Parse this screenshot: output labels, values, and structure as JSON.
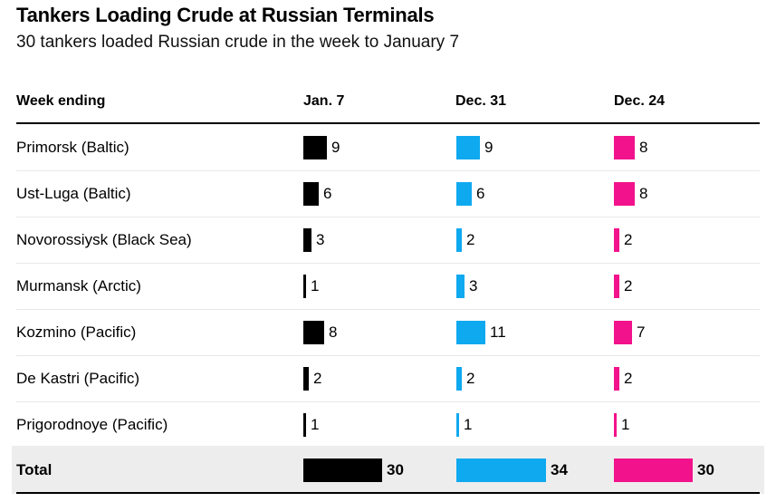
{
  "header": {
    "title": "Tankers Loading Crude at Russian Terminals",
    "subtitle": "30 tankers loaded Russian crude in the week to January 7"
  },
  "table": {
    "row_header_label": "Week ending",
    "columns": [
      {
        "label": "Jan. 7",
        "color": "#000000"
      },
      {
        "label": "Dec. 31",
        "color": "#0fa9f0"
      },
      {
        "label": "Dec. 24",
        "color": "#f2128c"
      }
    ],
    "rows": [
      {
        "terminal": "Primorsk (Baltic)",
        "values": [
          9,
          9,
          8
        ]
      },
      {
        "terminal": "Ust-Luga (Baltic)",
        "values": [
          6,
          6,
          8
        ]
      },
      {
        "terminal": "Novorossiysk (Black Sea)",
        "values": [
          3,
          2,
          2
        ]
      },
      {
        "terminal": "Murmansk (Arctic)",
        "values": [
          1,
          3,
          2
        ]
      },
      {
        "terminal": "Kozmino (Pacific)",
        "values": [
          8,
          11,
          7
        ]
      },
      {
        "terminal": "De Kastri (Pacific)",
        "values": [
          2,
          2,
          2
        ]
      },
      {
        "terminal": "Prigorodnoye (Pacific)",
        "values": [
          1,
          1,
          1
        ]
      }
    ],
    "total": {
      "label": "Total",
      "values": [
        30,
        34,
        30
      ]
    }
  },
  "chart_data": {
    "type": "bar",
    "orientation": "horizontal",
    "title": "Tankers Loading Crude at Russian Terminals",
    "subtitle": "30 tankers loaded Russian crude in the week to January 7",
    "xlabel": "Week ending",
    "value_labels": true,
    "grid": false,
    "categories": [
      "Primorsk (Baltic)",
      "Ust-Luga (Baltic)",
      "Novorossiysk (Black Sea)",
      "Murmansk (Arctic)",
      "Kozmino (Pacific)",
      "De Kastri (Pacific)",
      "Prigorodnoye (Pacific)",
      "Total"
    ],
    "series": [
      {
        "name": "Jan. 7",
        "color": "#000000",
        "values": [
          9,
          6,
          3,
          1,
          8,
          2,
          1,
          30
        ]
      },
      {
        "name": "Dec. 31",
        "color": "#0fa9f0",
        "values": [
          9,
          6,
          2,
          3,
          11,
          2,
          1,
          34
        ]
      },
      {
        "name": "Dec. 24",
        "color": "#f2128c",
        "values": [
          8,
          8,
          2,
          2,
          7,
          2,
          1,
          30
        ]
      }
    ]
  }
}
